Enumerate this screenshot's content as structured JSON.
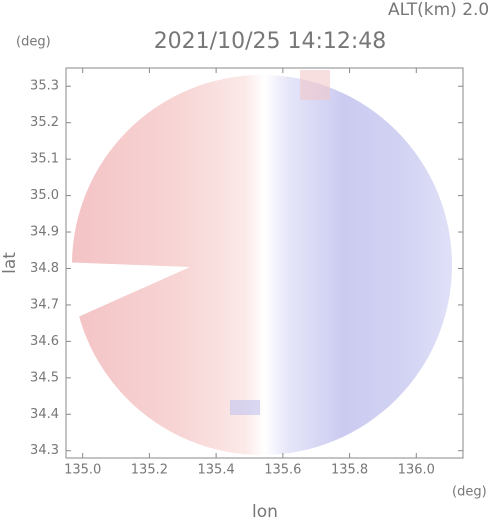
{
  "chart_data": {
    "type": "radar-map",
    "subtitle": "ALT(km) 2.0",
    "title": "2021/10/25 14:12:48",
    "xlabel": "lon",
    "ylabel": "lat",
    "xunit": "(deg)",
    "yunit": "(deg)",
    "xlim": [
      134.95,
      136.14
    ],
    "ylim": [
      34.28,
      35.35
    ],
    "xticks": [
      {
        "value": 135,
        "label": "135.0"
      },
      135.2,
      135.4,
      135.6,
      135.8,
      {
        "value": 136,
        "label": "136.0"
      }
    ],
    "yticks": [
      34.3,
      34.4,
      34.5,
      34.6,
      34.7,
      34.8,
      34.9,
      {
        "value": 35,
        "label": "35.0"
      },
      35.1,
      35.2,
      35.3
    ]
  }
}
